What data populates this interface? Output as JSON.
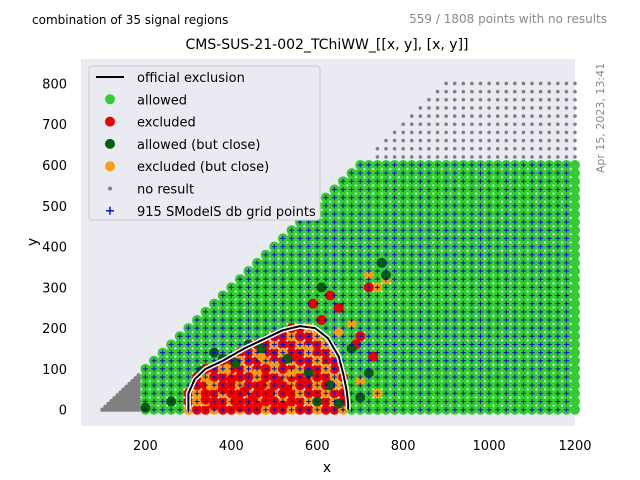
{
  "header": {
    "combination_note": "combination of 35 signal regions",
    "results_note": "559 / 1808 points with no results",
    "timestamp": "Apr 15, 2023, 13:41"
  },
  "chart_data": {
    "type": "scatter",
    "title": "CMS-SUS-21-002_TChiWW_[[x, y], [x, y]]",
    "xlabel": "x",
    "ylabel": "y",
    "xlim": [
      50,
      1200
    ],
    "ylim": [
      -40,
      860
    ],
    "xticks": [
      200,
      400,
      600,
      800,
      1000,
      1200
    ],
    "yticks": [
      0,
      100,
      200,
      300,
      400,
      500,
      600,
      700,
      800
    ],
    "grid": false,
    "background": "#eaeaf2",
    "legend_position": "top-left",
    "legend": [
      {
        "key": "official",
        "label": "official exclusion",
        "color": "#000000",
        "marker": "line"
      },
      {
        "key": "allowed",
        "label": "allowed",
        "color": "#33cc33",
        "marker": "circle"
      },
      {
        "key": "excluded",
        "label": "excluded",
        "color": "#ee0000",
        "marker": "circle"
      },
      {
        "key": "allowed_close",
        "label": "allowed (but close)",
        "color": "#0a5c12",
        "marker": "circle"
      },
      {
        "key": "excluded_close",
        "label": "excluded (but close)",
        "color": "#f5a00f",
        "marker": "circle"
      },
      {
        "key": "noresult",
        "label": "no result",
        "color": "#808080",
        "marker": "dot"
      },
      {
        "key": "grid",
        "label": "915 SModelS db grid points",
        "color": "#0000cc",
        "marker": "plus"
      }
    ],
    "official_exclusion_contour": {
      "x": [
        300,
        300,
        315,
        340,
        380,
        430,
        480,
        520,
        560,
        595,
        625,
        650,
        660,
        668,
        672,
        672
      ],
      "y": [
        0,
        40,
        75,
        100,
        120,
        150,
        175,
        195,
        205,
        200,
        175,
        130,
        90,
        50,
        15,
        0
      ]
    },
    "excluded_points": [
      [
        340,
        25
      ],
      [
        360,
        10
      ],
      [
        380,
        50
      ],
      [
        400,
        75
      ],
      [
        410,
        20
      ],
      [
        420,
        5
      ],
      [
        430,
        45
      ],
      [
        440,
        80
      ],
      [
        450,
        30
      ],
      [
        460,
        10
      ],
      [
        470,
        60
      ],
      [
        480,
        100
      ],
      [
        490,
        40
      ],
      [
        500,
        20
      ],
      [
        510,
        70
      ],
      [
        520,
        10
      ],
      [
        530,
        50
      ],
      [
        550,
        130
      ],
      [
        560,
        180
      ],
      [
        575,
        70
      ],
      [
        590,
        260
      ],
      [
        610,
        220
      ],
      [
        630,
        280
      ],
      [
        650,
        250
      ],
      [
        660,
        40
      ],
      [
        690,
        160
      ],
      [
        720,
        300
      ],
      [
        730,
        130
      ],
      [
        700,
        180
      ]
    ],
    "excluded_close_points": [
      [
        320,
        20
      ],
      [
        350,
        60
      ],
      [
        390,
        100
      ],
      [
        420,
        120
      ],
      [
        460,
        90
      ],
      [
        470,
        130
      ],
      [
        500,
        110
      ],
      [
        520,
        140
      ],
      [
        540,
        90
      ],
      [
        580,
        150
      ],
      [
        600,
        120
      ],
      [
        620,
        100
      ],
      [
        680,
        210
      ],
      [
        720,
        330
      ],
      [
        740,
        300
      ],
      [
        760,
        320
      ],
      [
        700,
        70
      ],
      [
        740,
        40
      ],
      [
        640,
        60
      ],
      [
        650,
        190
      ]
    ],
    "allowed_close_points": [
      [
        200,
        5
      ],
      [
        260,
        20
      ],
      [
        330,
        95
      ],
      [
        360,
        140
      ],
      [
        380,
        125
      ],
      [
        410,
        115
      ],
      [
        440,
        160
      ],
      [
        470,
        150
      ],
      [
        530,
        125
      ],
      [
        600,
        20
      ],
      [
        630,
        60
      ],
      [
        650,
        15
      ],
      [
        700,
        30
      ],
      [
        720,
        90
      ],
      [
        750,
        360
      ],
      [
        760,
        330
      ],
      [
        610,
        300
      ],
      [
        680,
        150
      ],
      [
        580,
        90
      ]
    ]
  }
}
